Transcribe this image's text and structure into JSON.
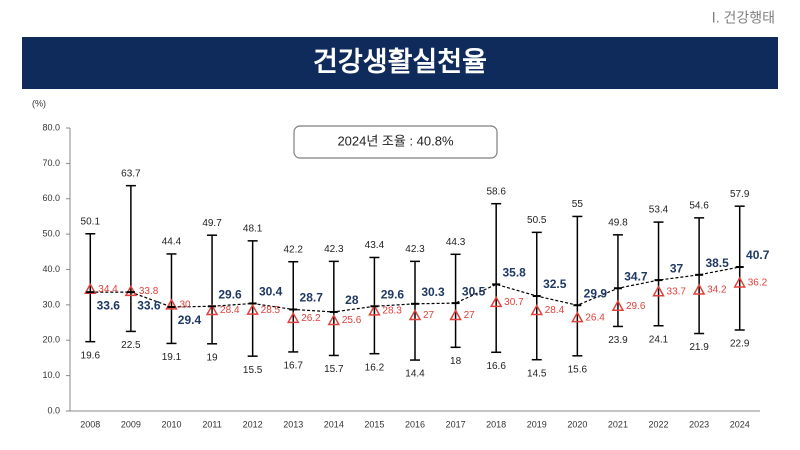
{
  "header": {
    "section": "Ⅰ. 건강행태",
    "title": "건강생활실천율"
  },
  "chart_data": {
    "type": "errorbar",
    "annotation": "2024년 조율 : 40.8%",
    "ylabel": "(%)",
    "categories": [
      "2008",
      "2009",
      "2010",
      "2011",
      "2012",
      "2013",
      "2014",
      "2015",
      "2016",
      "2017",
      "2018",
      "2019",
      "2020",
      "2021",
      "2022",
      "2023",
      "2024"
    ],
    "series": [
      {
        "color": "#1f3864",
        "values": [
          33.6,
          33.6,
          29.4,
          29.6,
          30.4,
          28.7,
          28.0,
          29.6,
          30.3,
          30.5,
          35.8,
          32.5,
          29.9,
          34.7,
          37.0,
          38.5,
          40.7
        ]
      },
      {
        "color": "#e0403a",
        "values": [
          34.4,
          33.8,
          30.0,
          28.4,
          28.5,
          26.2,
          25.6,
          28.3,
          27.0,
          27.0,
          30.7,
          28.4,
          26.4,
          29.6,
          33.7,
          34.2,
          36.2
        ]
      },
      {
        "color": "#000000",
        "values": [
          50.1,
          63.7,
          44.4,
          49.7,
          48.1,
          42.2,
          42.3,
          43.4,
          42.3,
          44.3,
          58.6,
          50.5,
          55.0,
          49.8,
          53.4,
          54.6,
          57.9
        ]
      },
      {
        "color": "#000000",
        "values": [
          19.6,
          22.5,
          19.1,
          19.0,
          15.5,
          16.7,
          15.7,
          16.2,
          14.4,
          18.0,
          16.6,
          14.5,
          15.6,
          23.9,
          24.1,
          21.9,
          22.9
        ]
      }
    ],
    "ylim": [
      0,
      80
    ],
    "yticks": [
      {
        "value": 0,
        "label": "0.0"
      },
      {
        "value": 10,
        "label": "10.0"
      },
      {
        "value": 20,
        "label": "20.0"
      },
      {
        "value": 30,
        "label": "30.0"
      },
      {
        "value": 40,
        "label": "40.0"
      },
      {
        "value": 50,
        "label": "50.0"
      },
      {
        "value": 60,
        "label": "60.0"
      },
      {
        "value": 70,
        "label": "70.0"
      },
      {
        "value": 80,
        "label": "80.0"
      }
    ]
  }
}
